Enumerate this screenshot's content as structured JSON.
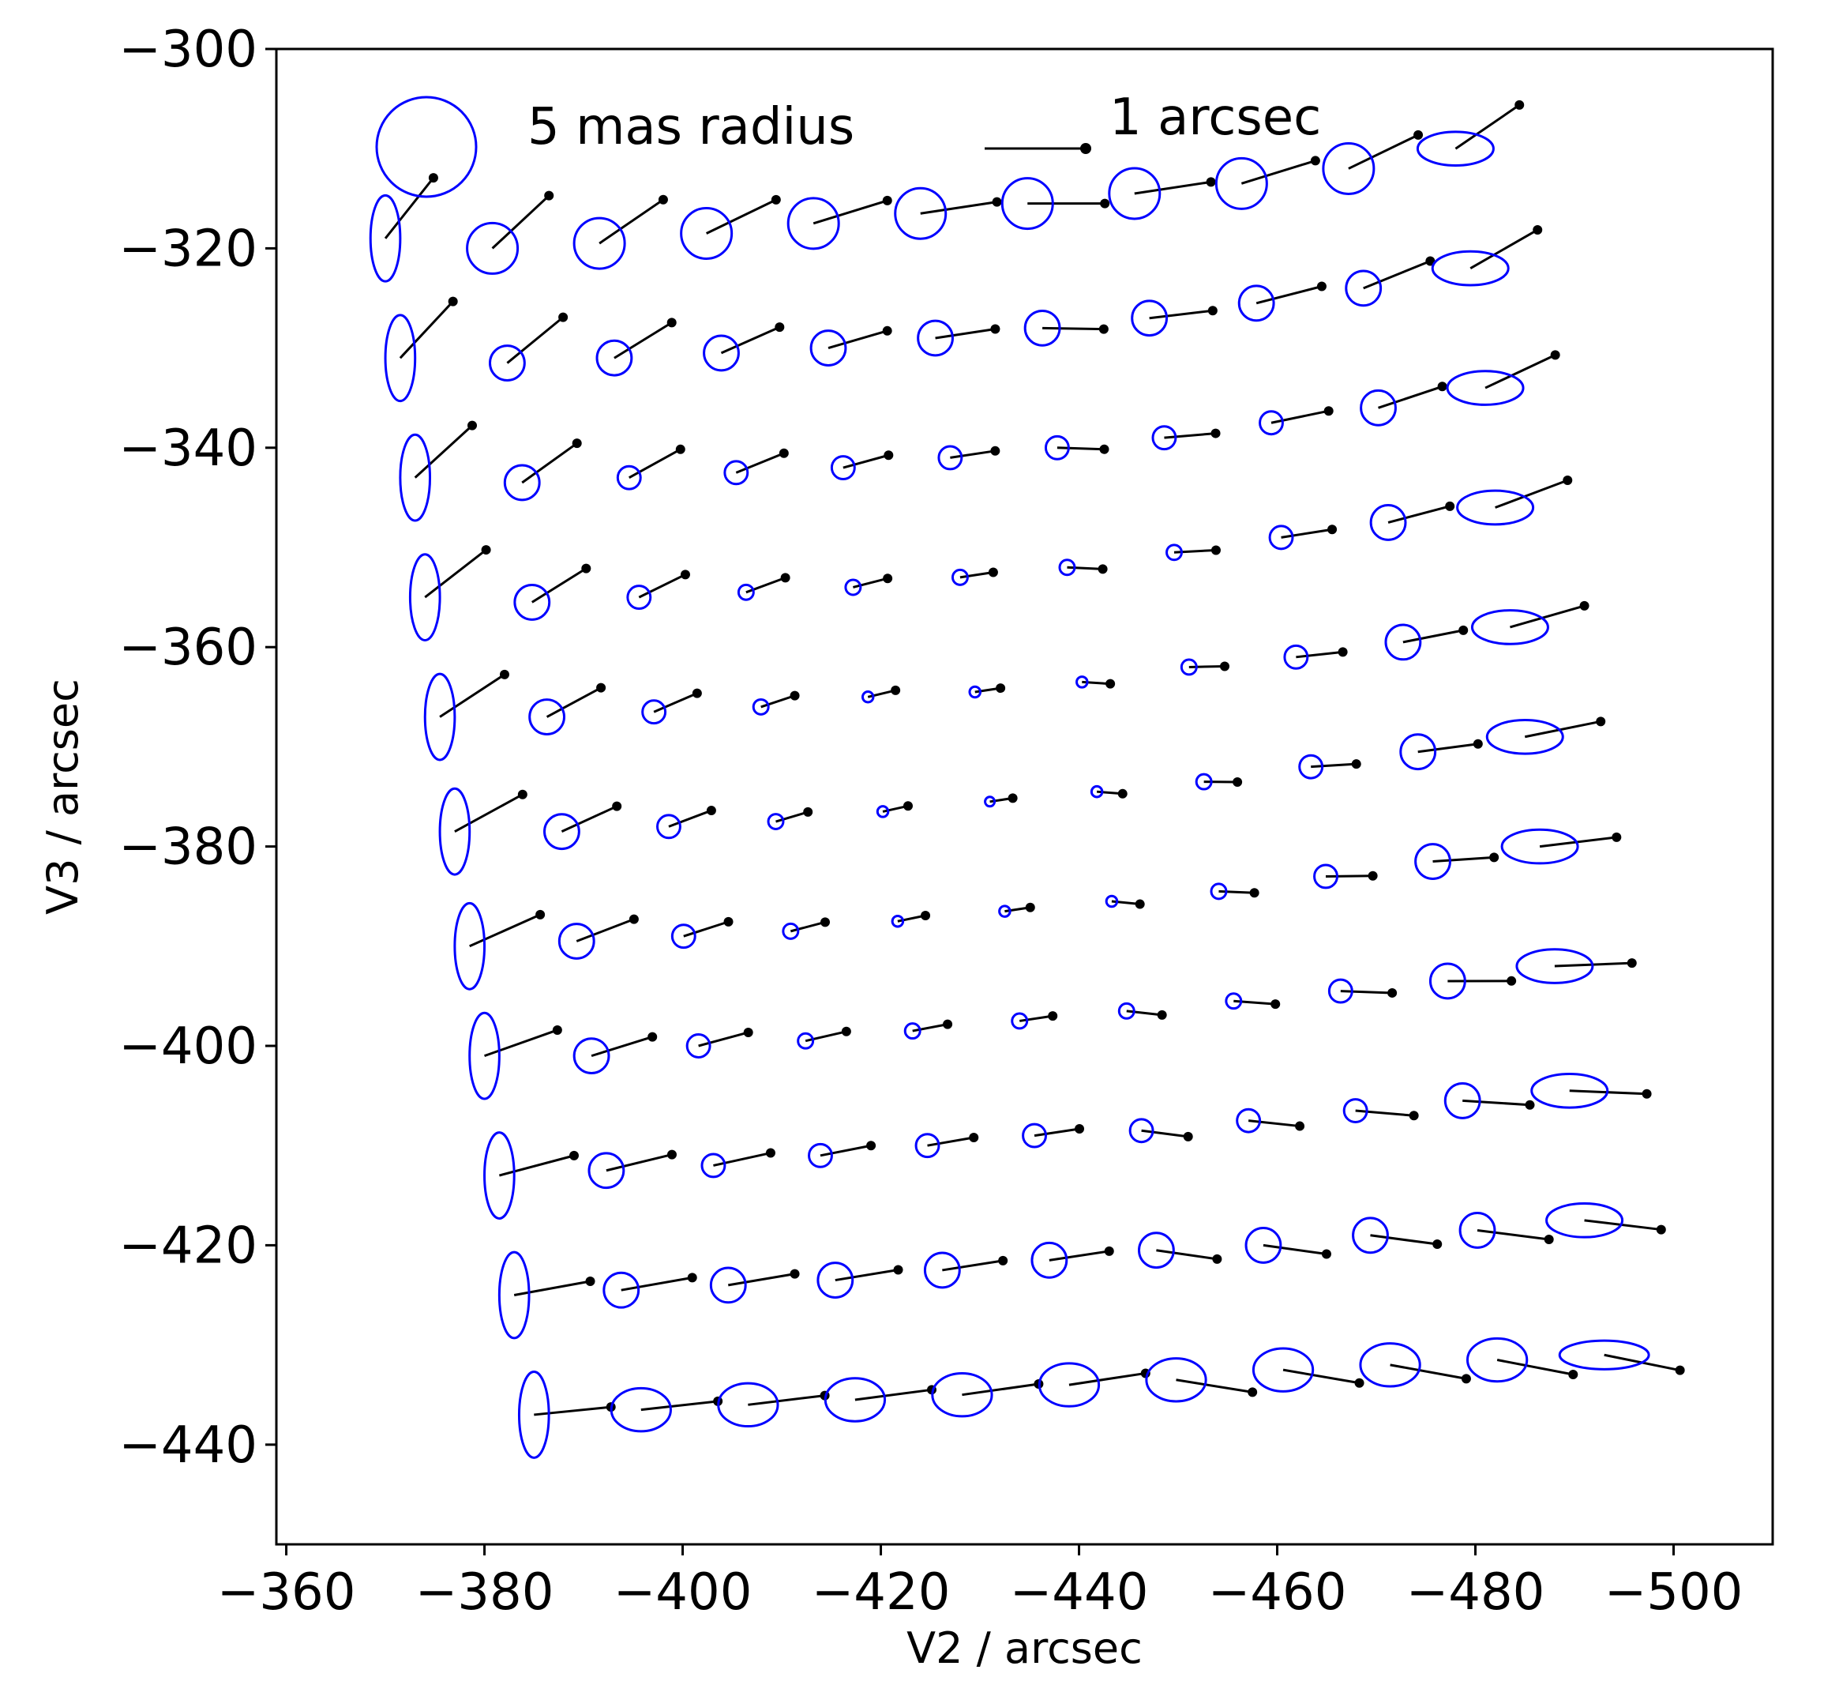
{
  "chart_data": {
    "type": "scatter",
    "title": "",
    "xlabel": "V2 / arcsec",
    "ylabel": "V3 / arcsec",
    "xlim": [
      -359,
      -510
    ],
    "ylim": [
      -450,
      -300
    ],
    "x_reversed": true,
    "xticks": [
      -360,
      -380,
      -400,
      -420,
      -440,
      -460,
      -480,
      -500
    ],
    "xtick_labels": [
      "−360",
      "−380",
      "−400",
      "−420",
      "−440",
      "−460",
      "−480",
      "−500"
    ],
    "yticks": [
      -300,
      -320,
      -340,
      -360,
      -380,
      -400,
      -420,
      -440
    ],
    "ytick_labels": [
      "−300",
      "−320",
      "−340",
      "−360",
      "−380",
      "−400",
      "−420",
      "−440"
    ],
    "grid": false,
    "legend": {
      "ellipse_label": "5 mas radius",
      "ellipse_radius_mas": 5,
      "vector_label": "1 arcsec",
      "vector_length_arcsec": 1,
      "placement": "top-left"
    },
    "colors": {
      "ellipse": "#0000ff",
      "vector": "#000000"
    },
    "rows": [
      [
        -319.0,
        -320.0,
        -319.5,
        -318.5,
        -317.5,
        -316.5,
        -315.5,
        -314.5,
        -313.5,
        -312.0,
        -310.0
      ],
      [
        -331.0,
        -331.5,
        -331.0,
        -330.5,
        -330.0,
        -329.0,
        -328.0,
        -327.0,
        -325.5,
        -324.0,
        -322.0
      ],
      [
        -343.0,
        -343.5,
        -343.0,
        -342.5,
        -342.0,
        -341.0,
        -340.0,
        -339.0,
        -337.5,
        -336.0,
        -334.0
      ],
      [
        -355.0,
        -355.5,
        -355.0,
        -354.5,
        -354.0,
        -353.0,
        -352.0,
        -350.5,
        -349.0,
        -347.5,
        -346.0
      ],
      [
        -367.0,
        -367.0,
        -366.5,
        -366.0,
        -365.0,
        -364.5,
        -363.5,
        -362.0,
        -361.0,
        -359.5,
        -358.0
      ],
      [
        -378.5,
        -378.5,
        -378.0,
        -377.5,
        -376.5,
        -375.5,
        -374.5,
        -373.5,
        -372.0,
        -370.5,
        -369.0
      ],
      [
        -390.0,
        -389.5,
        -389.0,
        -388.5,
        -387.5,
        -386.5,
        -385.5,
        -384.5,
        -383.0,
        -381.5,
        -380.0
      ],
      [
        -401.0,
        -401.0,
        -400.0,
        -399.5,
        -398.5,
        -397.5,
        -396.5,
        -395.5,
        -394.5,
        -393.5,
        -392.0
      ],
      [
        -413.0,
        -412.5,
        -412.0,
        -411.0,
        -410.0,
        -409.0,
        -408.5,
        -407.5,
        -406.5,
        -405.5,
        -404.5
      ],
      [
        -425.0,
        -424.5,
        -424.0,
        -423.5,
        -422.5,
        -421.5,
        -420.5,
        -420.0,
        -419.0,
        -418.5,
        -417.5
      ],
      [
        -437.0,
        -436.5,
        -436.0,
        -435.5,
        -435.0,
        -434.0,
        -433.5,
        -432.5,
        -432.0,
        -431.5,
        -431.0
      ]
    ],
    "x_start": [
      -370.0,
      -371.5,
      -373.0,
      -374.0,
      -375.5,
      -377.0,
      -378.5,
      -380.0,
      -381.5,
      -383.0,
      -385.0
    ],
    "x_step": 10.8,
    "note_units": "ellipse semi-axes in mas, offsets in arcsec"
  }
}
